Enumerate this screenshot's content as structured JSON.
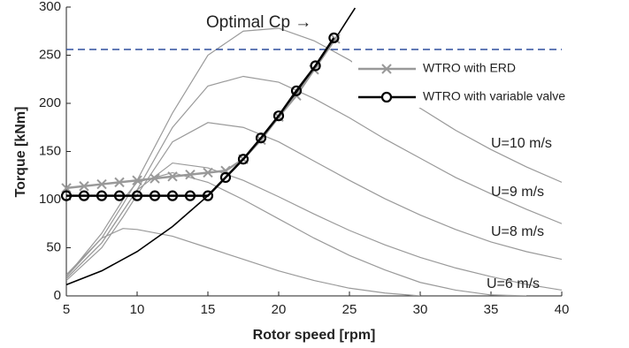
{
  "chart_data": {
    "type": "line",
    "xlabel": "Rotor speed [rpm]",
    "ylabel": "Torque [kNm]",
    "xlim": [
      5,
      40
    ],
    "ylim": [
      0,
      300
    ],
    "xticks": [
      5,
      10,
      15,
      20,
      25,
      30,
      35,
      40
    ],
    "yticks": [
      0,
      50,
      100,
      150,
      200,
      250,
      300
    ],
    "reference_line": {
      "value": 256,
      "color": "#2e4f9e"
    },
    "optimal": {
      "label": "Optimal Cp →",
      "color": "#000000",
      "x": [
        5,
        7.5,
        10,
        12.5,
        15,
        17.5,
        20,
        22.5,
        24,
        25,
        25.4
      ],
      "values": [
        11.6,
        26,
        46,
        72,
        104,
        142,
        185,
        235,
        267,
        290,
        299
      ]
    },
    "torque_curves": {
      "color": "#9a9a9a",
      "x": [
        5,
        7.5,
        9,
        10,
        12.5,
        15,
        17.5,
        20,
        22.5,
        25,
        27.5,
        30,
        32.5,
        35,
        37.5,
        40
      ],
      "series": [
        {
          "values": [
            22,
            60,
            70,
            69,
            62,
            50,
            38,
            26,
            16,
            8,
            3,
            0,
            null,
            null,
            null,
            null
          ]
        },
        {
          "values": [
            20,
            65,
            100,
            118,
            128,
            118,
            100,
            80,
            60,
            42,
            27,
            14,
            6,
            1,
            0,
            null
          ]
        },
        {
          "values": [
            18,
            55,
            88,
            110,
            138,
            133,
            120,
            103,
            85,
            68,
            53,
            40,
            29,
            20,
            12,
            6
          ]
        },
        {
          "values": [
            16,
            50,
            82,
            105,
            160,
            180,
            175,
            160,
            140,
            120,
            101,
            84,
            69,
            56,
            46,
            38
          ]
        },
        {
          "values": [
            18,
            55,
            88,
            110,
            175,
            218,
            228,
            222,
            205,
            185,
            163,
            143,
            123,
            106,
            90,
            75
          ]
        },
        {
          "values": [
            20,
            60,
            95,
            120,
            190,
            250,
            275,
            278,
            265,
            245,
            220,
            195,
            172,
            152,
            134,
            118
          ]
        }
      ]
    },
    "annotations": [
      {
        "text": "U=10 m/s"
      },
      {
        "text": "U=9 m/s"
      },
      {
        "text": "U=8 m/s"
      },
      {
        "text": "U=6 m/s"
      }
    ],
    "series": [
      {
        "name": "WTRO with ERD",
        "color": "#999999",
        "marker": "x",
        "x": [
          5,
          6.25,
          7.5,
          8.75,
          10,
          11.25,
          12.5,
          13.75,
          15,
          16.25,
          17.5,
          18.75,
          20,
          21.25,
          22.5,
          24
        ],
        "values": [
          112,
          114,
          116,
          118,
          120,
          122,
          124,
          126,
          128,
          130,
          142,
          162,
          186,
          208,
          235,
          267
        ]
      },
      {
        "name": "WTRO with variable valve",
        "color": "#000000",
        "marker": "o",
        "x": [
          5,
          6.25,
          7.5,
          8.75,
          10,
          11.25,
          12.5,
          13.75,
          15,
          16.25,
          17.5,
          18.75,
          20,
          21.25,
          22.6,
          23.9
        ],
        "values": [
          104,
          104,
          104,
          104,
          104,
          104,
          104,
          104,
          104,
          123,
          142,
          164,
          187,
          213,
          239,
          268
        ]
      }
    ]
  }
}
